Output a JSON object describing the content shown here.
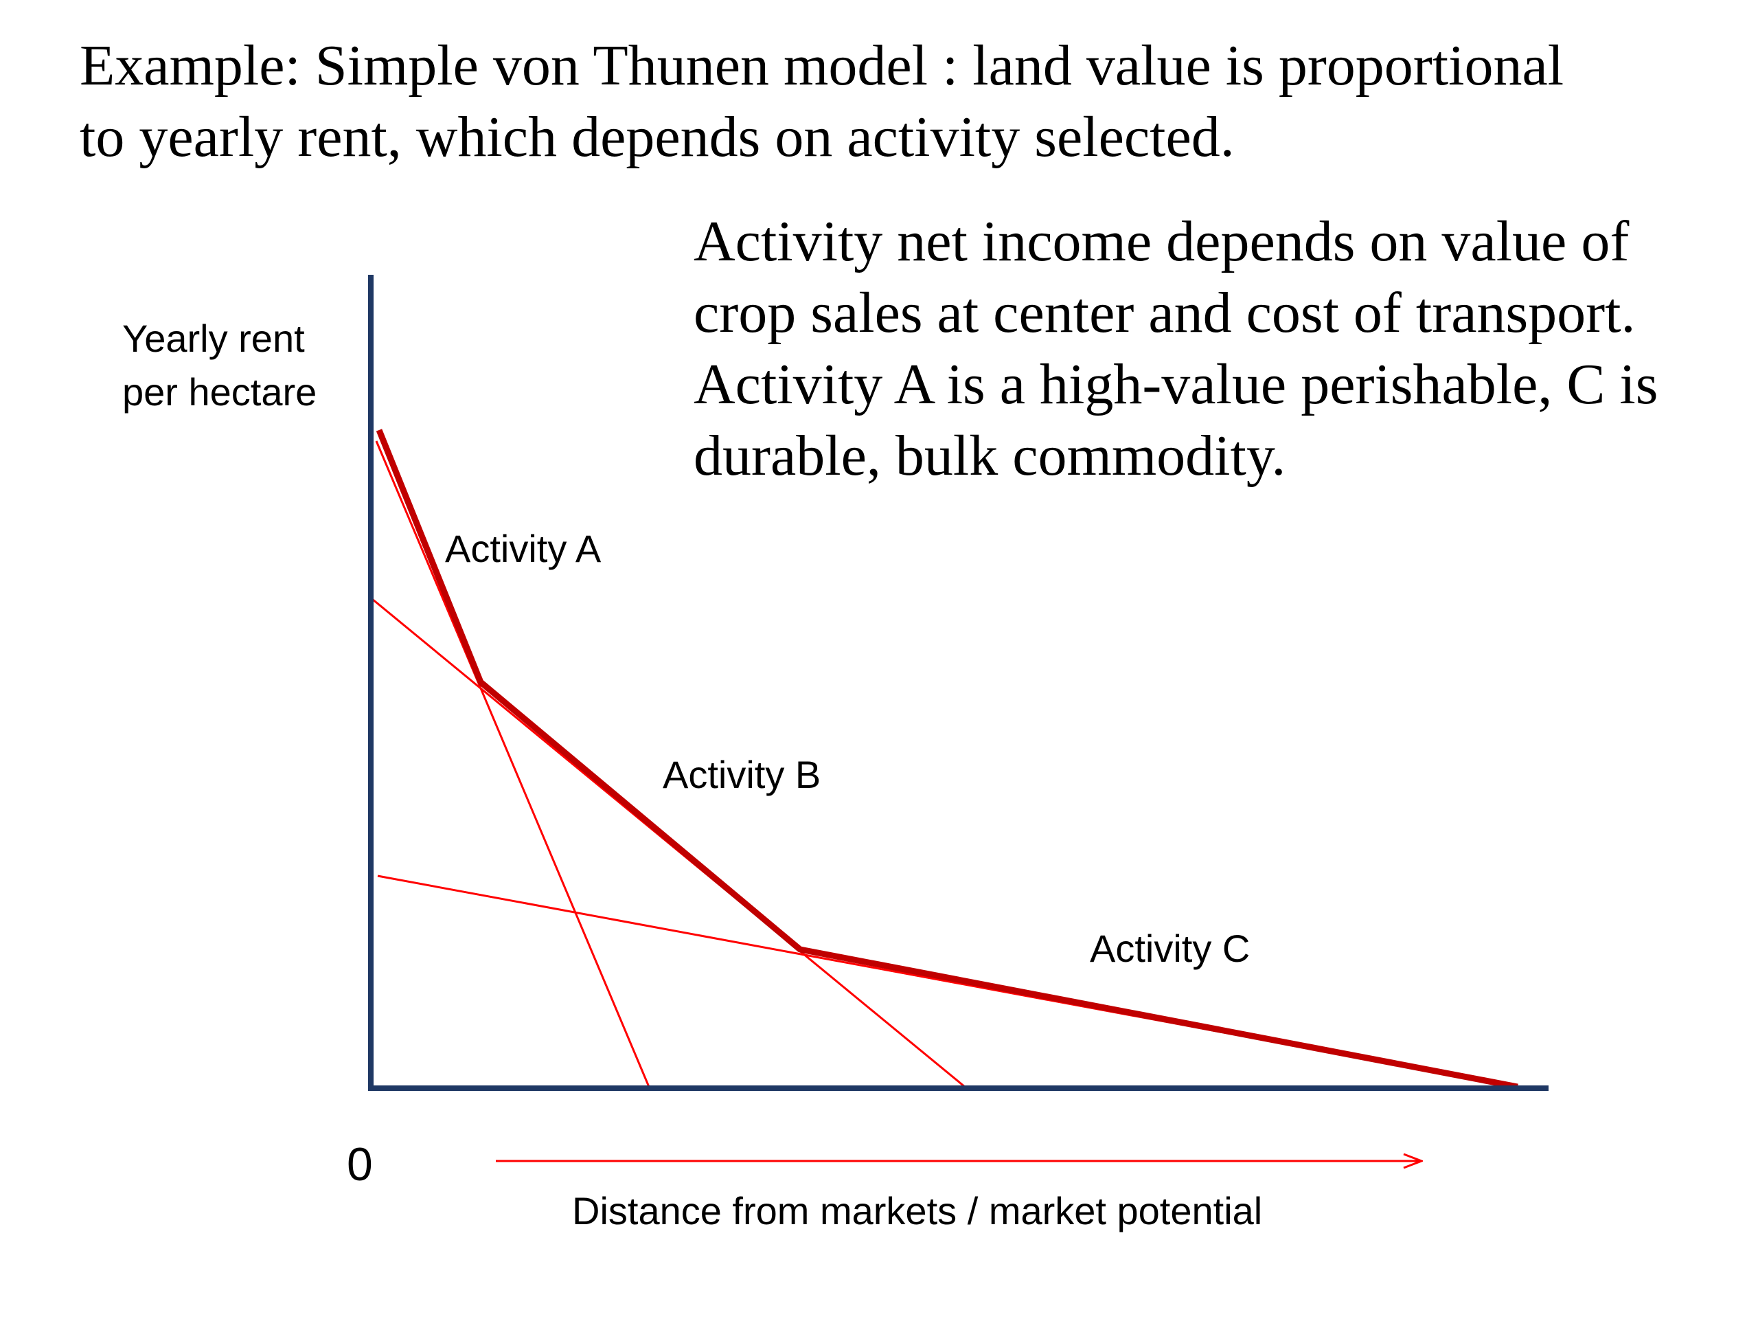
{
  "title": {
    "line1": "Example: Simple von Thunen model : land value is proportional",
    "line2": "to yearly rent, which depends on activity selected."
  },
  "description": {
    "line1": "Activity net income depends on value of",
    "line2": "crop sales at center and cost of transport.",
    "line3": "Activity A is a high-value perishable, C is",
    "line4": "durable, bulk commodity."
  },
  "diagram": {
    "y_axis_label_line1": "Yearly rent",
    "y_axis_label_line2": "per hectare",
    "origin_label": "0",
    "x_axis_label": "Distance from markets / market potential",
    "activity_a_label": "Activity A",
    "activity_b_label": "Activity B",
    "activity_c_label": "Activity C",
    "colors": {
      "axis": "#1f3864",
      "rent_lines": "#ff0000",
      "envelope": "#c00000",
      "distance_arrow": "#ff0000"
    }
  }
}
